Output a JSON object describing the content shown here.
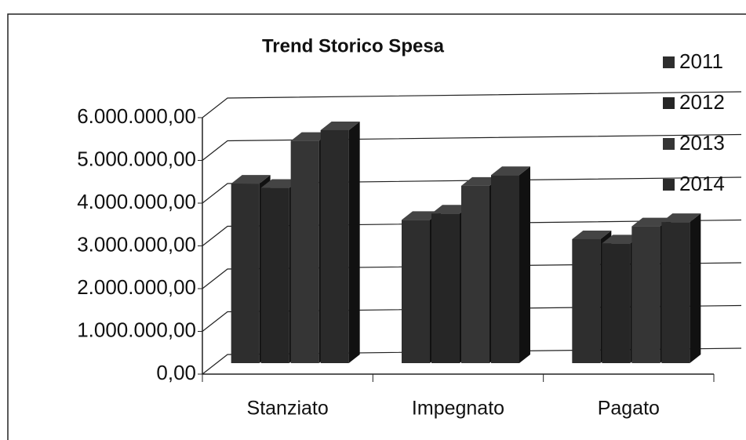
{
  "chart_data": {
    "type": "bar3d",
    "title": "Trend Storico Spesa",
    "categories": [
      "Stanziato",
      "Impegnato",
      "Pagato"
    ],
    "series": [
      {
        "name": "2011",
        "color": "#2e2e2e",
        "values": [
          4200000,
          3350000,
          2900000
        ]
      },
      {
        "name": "2012",
        "color": "#262626",
        "values": [
          4100000,
          3500000,
          2800000
        ]
      },
      {
        "name": "2013",
        "color": "#353535",
        "values": [
          5200000,
          4150000,
          3200000
        ]
      },
      {
        "name": "2014",
        "color": "#2a2a2a",
        "values": [
          5450000,
          4400000,
          3300000
        ]
      }
    ],
    "ylim": [
      0,
      6000000
    ],
    "yticks": [
      {
        "value": 0,
        "label": "0,00"
      },
      {
        "value": 1000000,
        "label": "1.000.000,00"
      },
      {
        "value": 2000000,
        "label": "2.000.000,00"
      },
      {
        "value": 3000000,
        "label": "3.000.000,00"
      },
      {
        "value": 4000000,
        "label": "4.000.000,00"
      },
      {
        "value": 5000000,
        "label": "5.000.000,00"
      },
      {
        "value": 6000000,
        "label": "6.000.000,00"
      }
    ],
    "grid": true,
    "legend": "right"
  }
}
